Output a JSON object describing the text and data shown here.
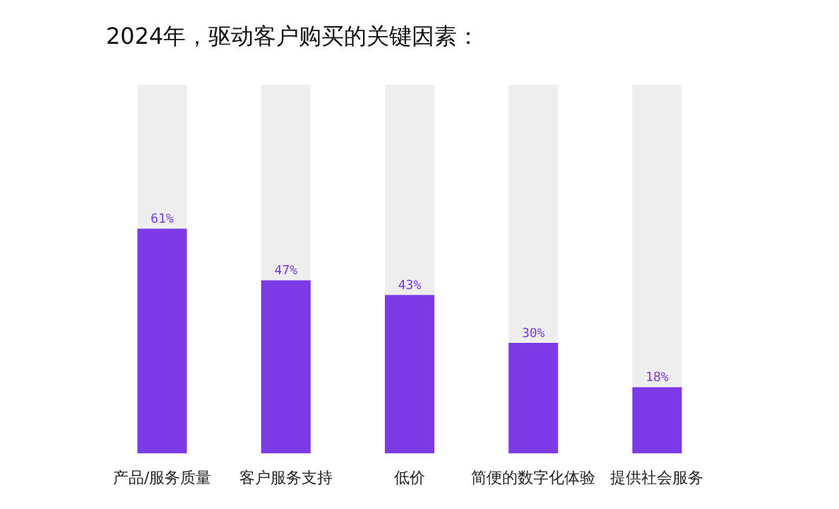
{
  "chart_data": {
    "type": "bar",
    "title": "2024年，驱动客户购买的关键因素：",
    "categories": [
      "产品/服务质量",
      "客户服务支持",
      "低价",
      "简便的数字化体验",
      "提供社会服务"
    ],
    "stacked": true,
    "ylim": [
      0,
      100
    ],
    "series": [
      {
        "color": "#7b3ae6",
        "values": [
          61,
          47,
          43,
          30,
          18
        ],
        "value_labels": [
          "61%",
          "47%",
          "43%",
          "30%",
          "18%"
        ]
      },
      {
        "color": "#eeeeee",
        "values": [
          39,
          53,
          57,
          70,
          82
        ]
      }
    ]
  }
}
